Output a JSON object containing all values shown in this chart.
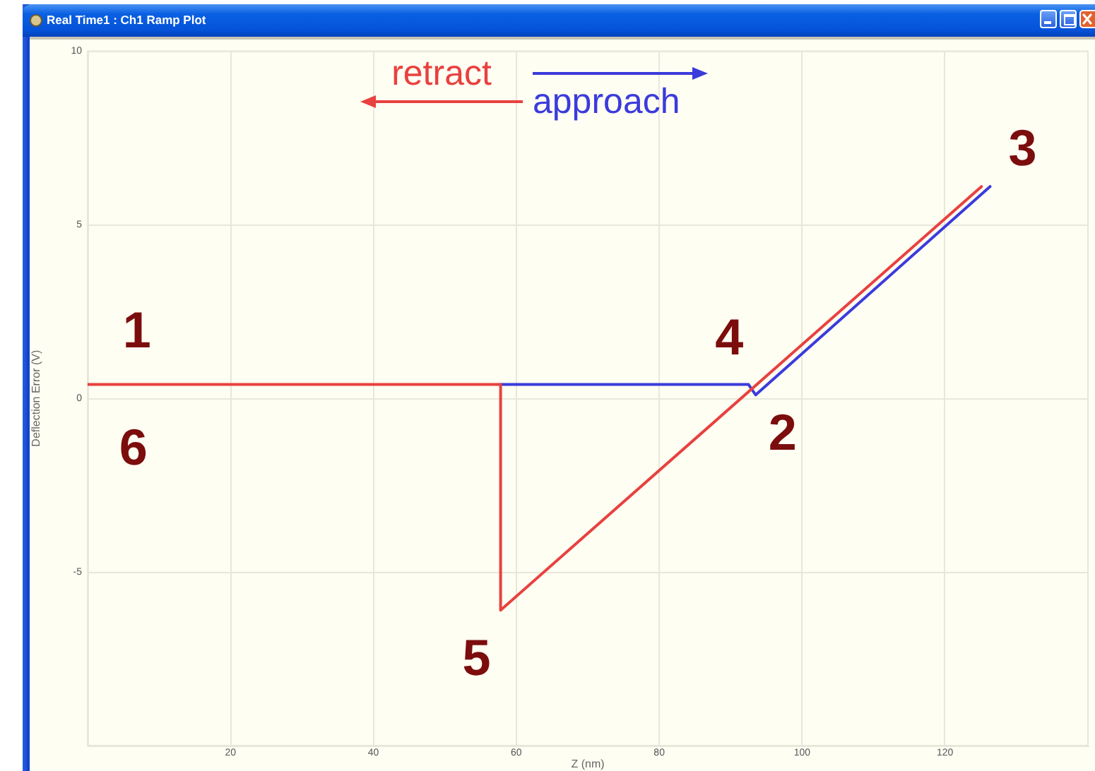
{
  "chart_data": {
    "type": "line",
    "title": "Real Time1 : Ch1 Ramp Plot",
    "xlabel": "Z (nm)",
    "ylabel": "Deflection Error (V)",
    "series": [
      {
        "color": "#e8413f",
        "x": [
          0,
          57.8,
          57.8,
          125.1
        ],
        "values": [
          0.4,
          0.4,
          -6.1,
          6.1
        ]
      },
      {
        "color": "#3b3bdc",
        "x": [
          57.8,
          92.5,
          93.5,
          126.3
        ],
        "values": [
          0.4,
          0.4,
          0.1,
          6.1
        ]
      }
    ],
    "xlim": [
      0,
      140
    ],
    "xticks": [
      20,
      40,
      60,
      80,
      100,
      120
    ],
    "ylim": [
      -10,
      10
    ],
    "yticks": [
      -5,
      0,
      5,
      10
    ],
    "grid": true,
    "marker": "none",
    "line_style": "solid",
    "annotations": [
      "retract",
      "approach",
      {
        "text": "1",
        "x": 6.9,
        "y": 0.4
      },
      {
        "text": "2",
        "x": 93.5,
        "y": 0.1
      },
      {
        "text": "3",
        "x": 126.3,
        "y": 6.1
      },
      {
        "text": "4",
        "x": 89.8,
        "y": 0.4
      },
      {
        "text": "5",
        "x": 57.8,
        "y": -6.1
      },
      {
        "text": "6",
        "x": 6.4,
        "y": 0.4
      }
    ]
  }
}
